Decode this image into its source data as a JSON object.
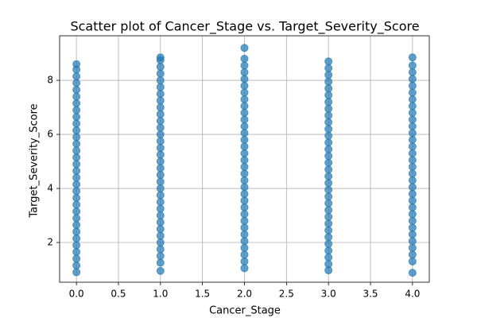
{
  "chart_data": {
    "type": "scatter",
    "title": "Scatter plot of Cancer_Stage vs. Target_Severity_Score",
    "xlabel": "Cancer_Stage",
    "ylabel": "Target_Severity_Score",
    "color": "#1f77b4",
    "alpha": 0.7,
    "grid": true,
    "xlim": [
      -0.2,
      4.2
    ],
    "ylim": [
      0.53,
      9.65
    ],
    "xticks": [
      {
        "value": 0,
        "label": "0.0"
      },
      {
        "value": 0.5,
        "label": "0.5"
      },
      {
        "value": 1,
        "label": "1.0"
      },
      {
        "value": 1.5,
        "label": "1.5"
      },
      {
        "value": 2,
        "label": "2.0"
      },
      {
        "value": 2.5,
        "label": "2.5"
      },
      {
        "value": 3,
        "label": "3.0"
      },
      {
        "value": 3.5,
        "label": "3.5"
      },
      {
        "value": 4,
        "label": "4.0"
      }
    ],
    "yticks": [
      2,
      4,
      6,
      8
    ],
    "x": [
      0,
      0,
      0,
      0,
      0,
      0,
      0,
      0,
      0,
      0,
      0,
      0,
      0,
      0,
      0,
      0,
      0,
      0,
      0,
      0,
      0,
      0,
      0,
      0,
      0,
      0,
      0,
      0,
      0,
      0,
      0,
      0,
      1,
      1,
      1,
      1,
      1,
      1,
      1,
      1,
      1,
      1,
      1,
      1,
      1,
      1,
      1,
      1,
      1,
      1,
      1,
      1,
      1,
      1,
      1,
      1,
      1,
      1,
      1,
      1,
      1,
      1,
      1,
      1,
      1,
      2,
      2,
      2,
      2,
      2,
      2,
      2,
      2,
      2,
      2,
      2,
      2,
      2,
      2,
      2,
      2,
      2,
      2,
      2,
      2,
      2,
      2,
      2,
      2,
      2,
      2,
      2,
      2,
      2,
      2,
      2,
      2,
      2,
      3,
      3,
      3,
      3,
      3,
      3,
      3,
      3,
      3,
      3,
      3,
      3,
      3,
      3,
      3,
      3,
      3,
      3,
      3,
      3,
      3,
      3,
      3,
      3,
      3,
      3,
      3,
      3,
      3,
      3,
      3,
      3,
      4,
      4,
      4,
      4,
      4,
      4,
      4,
      4,
      4,
      4,
      4,
      4,
      4,
      4,
      4,
      4,
      4,
      4,
      4,
      4,
      4,
      4,
      4,
      4,
      4,
      4,
      4,
      4,
      4,
      4,
      4,
      4
    ],
    "values": [
      0.9,
      1.15,
      1.4,
      1.65,
      1.9,
      2.15,
      2.4,
      2.65,
      2.9,
      3.15,
      3.4,
      3.65,
      3.9,
      4.15,
      4.4,
      4.65,
      4.9,
      5.15,
      5.4,
      5.65,
      5.9,
      6.15,
      6.4,
      6.65,
      6.9,
      7.15,
      7.4,
      7.65,
      7.9,
      8.15,
      8.4,
      8.6,
      0.95,
      1.25,
      1.5,
      1.75,
      2,
      2.25,
      2.5,
      2.75,
      3,
      3.25,
      3.5,
      3.75,
      4,
      4.25,
      4.5,
      4.75,
      5,
      5.25,
      5.5,
      5.75,
      6,
      6.25,
      6.5,
      6.75,
      7,
      7.25,
      7.5,
      7.75,
      8,
      8.25,
      8.5,
      8.75,
      8.85,
      1.05,
      1.3,
      1.55,
      1.8,
      2.05,
      2.3,
      2.55,
      2.8,
      3.05,
      3.3,
      3.55,
      3.8,
      4.05,
      4.3,
      4.55,
      4.8,
      5.05,
      5.3,
      5.55,
      5.8,
      6.05,
      6.3,
      6.55,
      6.8,
      7.05,
      7.3,
      7.55,
      7.8,
      8.05,
      8.3,
      8.55,
      8.8,
      9.2,
      0.97,
      1.2,
      1.45,
      1.7,
      1.95,
      2.2,
      2.45,
      2.7,
      2.95,
      3.2,
      3.45,
      3.7,
      3.95,
      4.2,
      4.45,
      4.7,
      4.95,
      5.2,
      5.45,
      5.7,
      5.95,
      6.2,
      6.45,
      6.7,
      6.95,
      7.2,
      7.45,
      7.7,
      7.95,
      8.2,
      8.45,
      8.7,
      0.88,
      1.3,
      1.55,
      1.8,
      2.05,
      2.3,
      2.55,
      2.8,
      3.05,
      3.3,
      3.55,
      3.8,
      4.05,
      4.3,
      4.55,
      4.8,
      5.05,
      5.3,
      5.55,
      5.8,
      6.05,
      6.3,
      6.55,
      6.8,
      7.05,
      7.3,
      7.55,
      7.8,
      8.05,
      8.3,
      8.55,
      8.85
    ]
  }
}
